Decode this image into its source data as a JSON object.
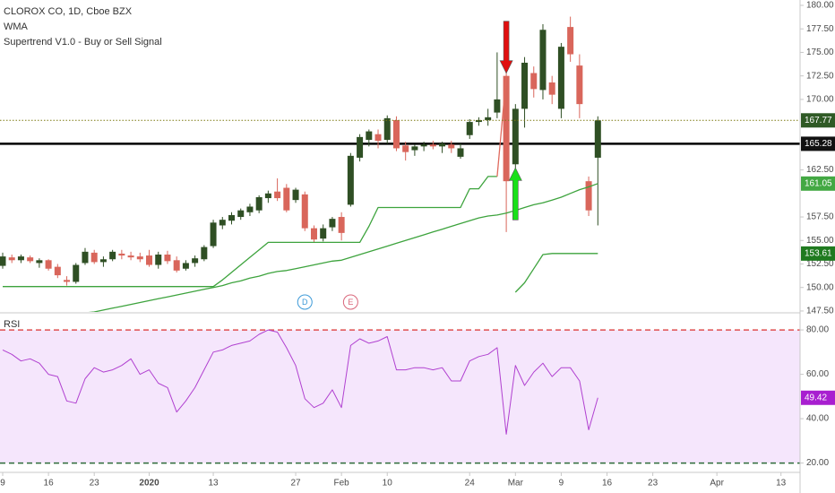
{
  "chart_data": [
    {
      "type": "candlestick",
      "title": "CLOROX CO, 1D, Cboe BZX",
      "categories": [
        "9",
        null,
        null,
        null,
        null,
        "16",
        null,
        null,
        null,
        null,
        "23",
        null,
        null,
        null,
        null,
        null,
        "2020",
        null,
        null,
        null,
        null,
        null,
        null,
        "13",
        null,
        null,
        null,
        null,
        null,
        null,
        null,
        null,
        "27",
        null,
        null,
        null,
        null,
        "Feb",
        null,
        null,
        null,
        null,
        "10",
        null,
        null,
        null,
        null,
        null,
        null,
        null,
        null,
        "24",
        null,
        null,
        null,
        null,
        "Mar",
        null,
        null,
        null,
        null,
        "9",
        null,
        null,
        null,
        null,
        "16",
        null,
        null,
        null,
        null,
        "23",
        null,
        null,
        null,
        null,
        null,
        null,
        "Apr",
        null,
        null,
        null,
        null,
        null,
        null,
        "13"
      ],
      "open": [
        152.3,
        153.2,
        152.9,
        153.2,
        152.6,
        152.9,
        152.2,
        150.8,
        150.6,
        152.6,
        153.7,
        152.7,
        153.0,
        153.6,
        153.4,
        153.3,
        153.4,
        152.4,
        153.5,
        152.9,
        152.0,
        152.6,
        153.0,
        154.4,
        156.6,
        157.1,
        157.5,
        158.0,
        158.2,
        159.5,
        160.2,
        160.6,
        159.3,
        159.9,
        156.3,
        155.2,
        156.4,
        157.5,
        158.8,
        163.8,
        165.7,
        166.3,
        165.7,
        167.8,
        165.1,
        164.6,
        165.0,
        165.2,
        165.0,
        165.2,
        163.9,
        166.2,
        167.6,
        167.8,
        168.6,
        172.5,
        163.1,
        169.0,
        172.8,
        171.0,
        171.8,
        169.0,
        177.7,
        173.6,
        161.3,
        163.8,
        null,
        null,
        null,
        null,
        null,
        null,
        null,
        null,
        null,
        null,
        null,
        null,
        null,
        null,
        null,
        null,
        null,
        null,
        null,
        null
      ],
      "high": [
        153.7,
        153.5,
        153.5,
        153.4,
        153.1,
        153.0,
        152.5,
        151.2,
        152.6,
        154.2,
        154.0,
        153.3,
        154.0,
        154.0,
        153.8,
        153.7,
        154.0,
        153.8,
        153.9,
        153.3,
        152.9,
        153.4,
        154.5,
        157.2,
        157.5,
        158.0,
        158.4,
        158.9,
        159.8,
        160.3,
        161.6,
        161.0,
        160.6,
        160.2,
        156.6,
        156.7,
        157.5,
        158.0,
        164.3,
        166.3,
        166.8,
        166.8,
        168.3,
        168.2,
        165.5,
        165.2,
        165.5,
        165.6,
        165.5,
        165.6,
        165.3,
        167.9,
        168.1,
        169.0,
        175.0,
        173.0,
        169.5,
        174.5,
        173.5,
        178.0,
        172.5,
        176.0,
        178.8,
        174.8,
        161.8,
        168.2,
        null,
        null,
        null,
        null,
        null,
        null,
        null,
        null,
        null,
        null,
        null,
        null,
        null,
        null,
        null,
        null,
        null,
        null,
        null,
        null
      ],
      "low": [
        152.0,
        152.6,
        152.6,
        152.6,
        152.1,
        151.8,
        151.0,
        150.2,
        150.4,
        152.4,
        152.5,
        152.2,
        152.8,
        153.0,
        152.9,
        152.7,
        152.2,
        152.0,
        152.5,
        151.6,
        151.8,
        152.2,
        152.8,
        154.2,
        156.2,
        156.7,
        157.2,
        157.6,
        157.9,
        159.0,
        159.2,
        158.0,
        159.0,
        156.0,
        154.8,
        154.9,
        156.0,
        155.0,
        158.6,
        163.4,
        165.0,
        164.8,
        165.3,
        164.5,
        163.5,
        164.0,
        164.5,
        164.7,
        164.3,
        164.3,
        163.7,
        165.8,
        167.2,
        167.2,
        168.0,
        155.9,
        157.5,
        167.0,
        170.2,
        170.0,
        169.5,
        168.0,
        174.0,
        168.0,
        157.6,
        156.6,
        null,
        null,
        null,
        null,
        null,
        null,
        null,
        null,
        null,
        null,
        null,
        null,
        null,
        null,
        null,
        null,
        null,
        null,
        null,
        null
      ],
      "close": [
        153.3,
        152.9,
        153.3,
        152.8,
        152.9,
        152.0,
        151.3,
        150.6,
        152.4,
        153.8,
        152.7,
        153.0,
        153.8,
        153.4,
        153.2,
        153.0,
        152.4,
        153.5,
        152.8,
        151.8,
        152.6,
        153.1,
        154.3,
        156.9,
        157.2,
        157.7,
        158.2,
        158.6,
        159.6,
        160.0,
        159.5,
        158.2,
        160.4,
        156.3,
        155.1,
        156.3,
        157.3,
        155.8,
        164.0,
        166.0,
        166.6,
        165.6,
        168.0,
        164.8,
        164.4,
        165.0,
        165.2,
        165.0,
        165.3,
        164.8,
        164.8,
        167.6,
        167.8,
        168.1,
        170.0,
        161.3,
        169.0,
        173.9,
        171.1,
        177.4,
        170.5,
        175.6,
        174.8,
        169.5,
        158.2,
        167.77,
        null,
        null,
        null,
        null,
        null,
        null,
        null,
        null,
        null,
        null,
        null,
        null,
        null,
        null,
        null,
        null,
        null,
        null,
        null,
        null
      ],
      "up_color": "#2f4f24",
      "down_color": "#d9665b",
      "last_price_line": {
        "color": "#7d7a12",
        "box_color": "#2f5a25"
      },
      "series": [
        {
          "name": "WMA",
          "color": "#3da33d",
          "box_color": "#43a843",
          "values": [
            null,
            null,
            null,
            null,
            null,
            null,
            null,
            null,
            null,
            147.3,
            147.4,
            147.6,
            147.8,
            148.0,
            148.2,
            148.4,
            148.6,
            148.8,
            149.0,
            149.2,
            149.4,
            149.6,
            149.8,
            150.0,
            150.2,
            150.5,
            150.7,
            151.0,
            151.2,
            151.5,
            151.7,
            151.8,
            152.0,
            152.2,
            152.4,
            152.6,
            152.8,
            152.9,
            153.2,
            153.5,
            153.8,
            154.1,
            154.4,
            154.7,
            155.0,
            155.3,
            155.6,
            155.9,
            156.2,
            156.5,
            156.8,
            157.1,
            157.4,
            157.6,
            157.7,
            157.9,
            158.2,
            158.5,
            158.8,
            159.0,
            159.3,
            159.6,
            160.0,
            160.4,
            160.7,
            161.05,
            null,
            null,
            null,
            null,
            null,
            null,
            null,
            null,
            null,
            null,
            null,
            null,
            null,
            null,
            null,
            null,
            null,
            null,
            null,
            null
          ]
        },
        {
          "name": "Supertrend V1.0 - Buy or Sell Signal",
          "color": "#3da33d",
          "box_color": "#1f7a1f",
          "color_down": "#e06a5e",
          "values": [
            150.1,
            150.1,
            150.1,
            150.1,
            150.1,
            150.1,
            150.1,
            150.1,
            150.1,
            150.1,
            150.1,
            150.1,
            150.1,
            150.1,
            150.1,
            150.1,
            150.1,
            150.1,
            150.1,
            150.1,
            150.1,
            150.1,
            150.1,
            150.1,
            150.8,
            151.6,
            152.4,
            153.2,
            154.0,
            154.8,
            154.8,
            154.8,
            154.8,
            154.8,
            154.8,
            154.8,
            154.8,
            154.8,
            154.8,
            154.8,
            156.5,
            158.5,
            158.5,
            158.5,
            158.5,
            158.5,
            158.5,
            158.5,
            158.5,
            158.5,
            158.5,
            160.5,
            160.5,
            161.8,
            161.8,
            null,
            149.5,
            150.5,
            152.0,
            153.5,
            153.61,
            153.61,
            153.61,
            153.61,
            153.61,
            153.61,
            null,
            null,
            null,
            null,
            null,
            null,
            null,
            null,
            null,
            null,
            null,
            null,
            null,
            null,
            null,
            null,
            null,
            null,
            null,
            null
          ],
          "values_down": [
            null,
            null,
            null,
            null,
            null,
            null,
            null,
            null,
            null,
            null,
            null,
            null,
            null,
            null,
            null,
            null,
            null,
            null,
            null,
            null,
            null,
            null,
            null,
            null,
            null,
            null,
            null,
            null,
            null,
            null,
            null,
            null,
            null,
            null,
            null,
            null,
            null,
            null,
            null,
            null,
            null,
            null,
            null,
            null,
            null,
            null,
            null,
            null,
            null,
            null,
            null,
            null,
            null,
            null,
            161.8,
            172.5,
            null,
            null,
            null,
            null,
            null,
            null,
            null,
            null,
            null,
            null,
            null,
            null,
            null,
            null,
            null,
            null,
            null,
            null,
            null,
            null,
            null,
            null,
            null,
            null,
            null,
            null,
            null,
            null,
            null,
            null
          ]
        }
      ],
      "hlines": [
        {
          "value": 165.28,
          "color": "#000000",
          "box_color": "#111111"
        }
      ],
      "signals": [
        {
          "index": 55,
          "direction": "sell",
          "color": "#e01010"
        },
        {
          "index": 56,
          "direction": "buy",
          "color": "#19e019"
        }
      ],
      "events": [
        {
          "label": "D",
          "index": 33,
          "color": "#3d9ad8"
        },
        {
          "label": "E",
          "index": 38,
          "color": "#d9667a"
        }
      ],
      "ylim": [
        147.4,
        180.57
      ],
      "yticks": [
        {
          "value": 180,
          "label": "180.00"
        },
        {
          "value": 177.5,
          "label": "177.50"
        },
        {
          "value": 175,
          "label": "175.00"
        },
        {
          "value": 172.5,
          "label": "172.50"
        },
        {
          "value": 170,
          "label": "170.00"
        },
        {
          "value": 162.5,
          "label": "162.50"
        },
        {
          "value": 157.5,
          "label": "157.50"
        },
        {
          "value": 155,
          "label": "155.00"
        },
        {
          "value": 152.5,
          "label": "152.50"
        },
        {
          "value": 150,
          "label": "150.00"
        },
        {
          "value": 147.5,
          "label": "147.50"
        }
      ]
    },
    {
      "type": "line",
      "title": "RSI",
      "series": [
        {
          "color": "#b040d0",
          "box_color": "#a81fd0",
          "values": [
            71,
            69,
            66,
            67,
            65,
            60,
            59,
            48,
            47,
            58,
            63,
            61,
            62,
            64,
            67,
            60,
            62,
            56,
            54,
            43,
            48,
            54,
            62,
            70,
            71,
            73,
            74,
            75,
            78,
            80,
            79,
            72,
            64,
            49,
            45,
            47,
            53,
            45,
            73,
            76,
            74,
            75,
            77,
            62,
            62,
            63,
            63,
            62,
            63,
            57,
            57,
            66,
            68,
            69,
            72,
            33,
            64,
            55,
            61,
            65,
            59,
            63,
            63,
            57,
            35,
            49.42,
            null,
            null,
            null,
            null,
            null,
            null,
            null,
            null,
            null,
            null,
            null,
            null,
            null,
            null,
            null,
            null,
            null,
            null,
            null,
            null
          ]
        }
      ],
      "hlines": [
        {
          "value": 80,
          "color": "#e05050"
        },
        {
          "value": 20,
          "color": "#2e6b3a"
        }
      ],
      "band_color": "#f5e6fc",
      "ylim": [
        15.8,
        87.3
      ],
      "yticks": [
        {
          "value": 80,
          "label": "80.00"
        },
        {
          "value": 60,
          "label": "60.00"
        },
        {
          "value": 40,
          "label": "40.00"
        },
        {
          "value": 20,
          "label": "20.00"
        }
      ]
    }
  ]
}
